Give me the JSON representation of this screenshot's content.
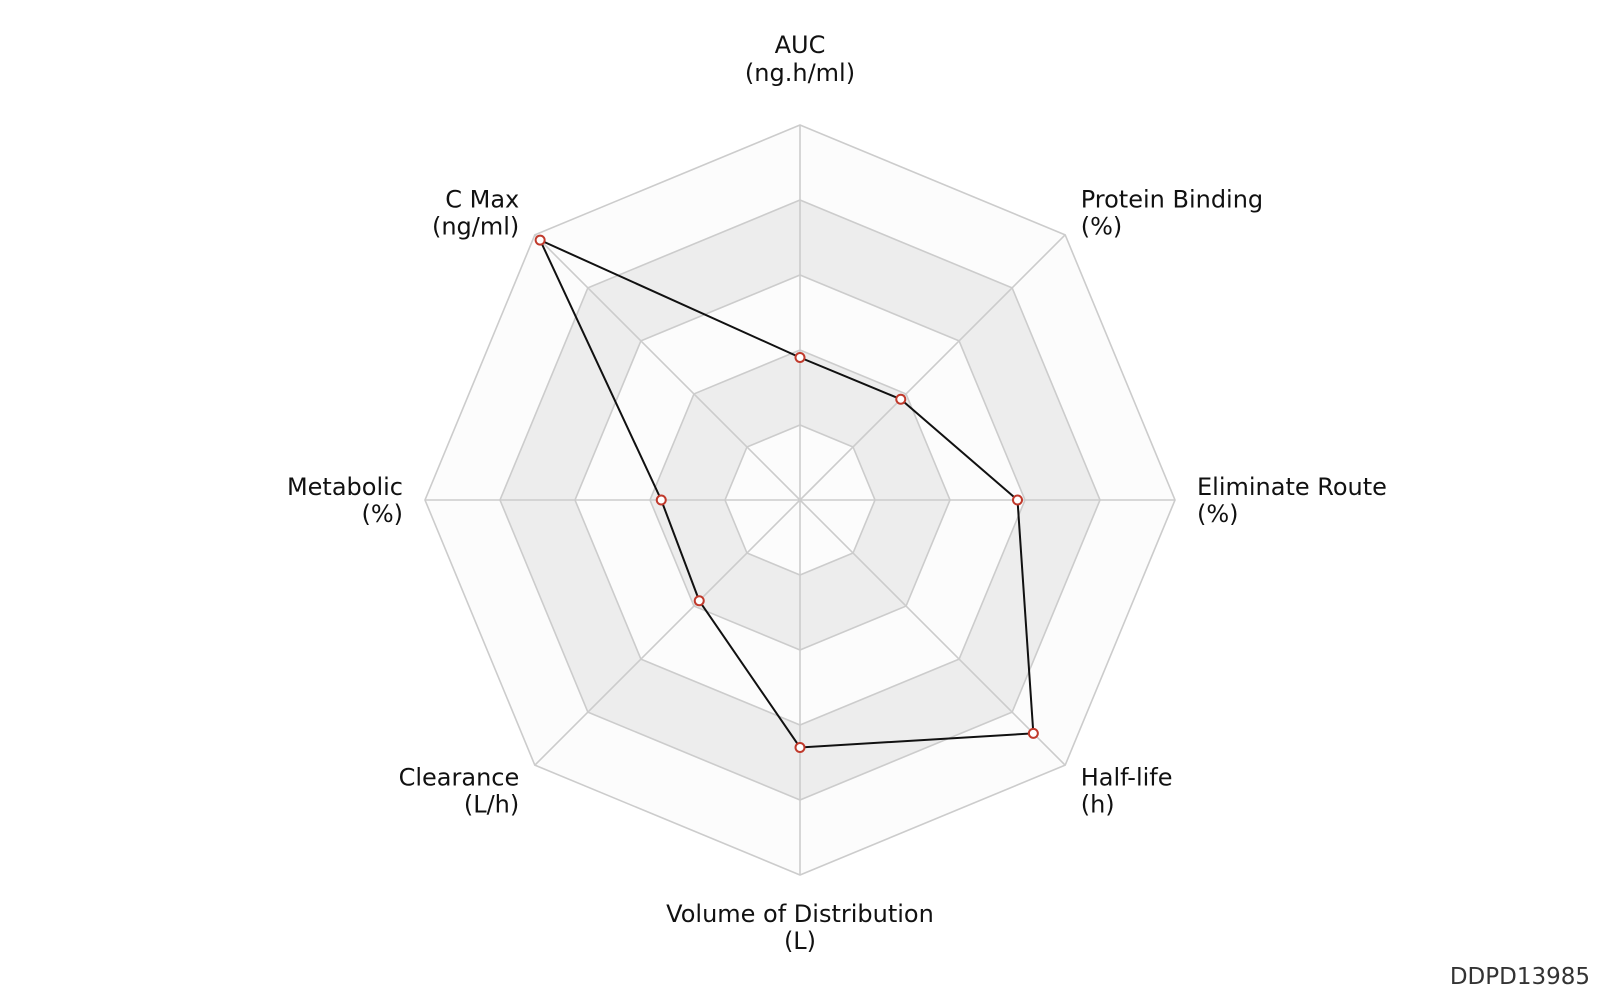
{
  "chart_data": {
    "type": "radar",
    "axes": [
      {
        "name": "AUC",
        "unit": "(ng.h/ml)"
      },
      {
        "name": "Protein Binding",
        "unit": "(%)"
      },
      {
        "name": "Eliminate Route",
        "unit": "(%)"
      },
      {
        "name": "Half-life",
        "unit": "(h)"
      },
      {
        "name": "Volume of Distribution",
        "unit": "(L)"
      },
      {
        "name": "Clearance",
        "unit": "(L/h)"
      },
      {
        "name": "Metabolic",
        "unit": "(%)"
      },
      {
        "name": "C Max",
        "unit": "(ng/ml)"
      }
    ],
    "levels": 5,
    "range": [
      0,
      5
    ],
    "values": [
      1.9,
      1.9,
      2.9,
      4.4,
      3.3,
      1.9,
      1.85,
      4.9
    ],
    "colors": {
      "band_light": "#fcfcfc",
      "band_shaded": "#ededed",
      "grid_line": "#cccccc",
      "series_line": "#111111",
      "marker_stroke": "#c0392b",
      "marker_fill": "#ffffff"
    }
  },
  "watermark": "DDPD13985"
}
